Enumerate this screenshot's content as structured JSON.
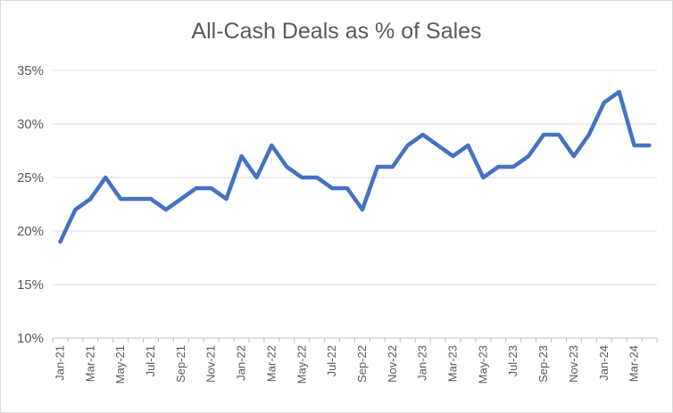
{
  "chart_data": {
    "type": "line",
    "title": "All-Cash Deals as % of Sales",
    "xlabel": "",
    "ylabel": "",
    "ylim": [
      10,
      35
    ],
    "yticks": [
      "10%",
      "15%",
      "20%",
      "25%",
      "30%",
      "35%"
    ],
    "grid": true,
    "legend": "none",
    "categories": [
      "Jan-21",
      "Feb-21",
      "Mar-21",
      "Apr-21",
      "May-21",
      "Jun-21",
      "Jul-21",
      "Aug-21",
      "Sep-21",
      "Oct-21",
      "Nov-21",
      "Dec-21",
      "Jan-22",
      "Feb-22",
      "Mar-22",
      "Apr-22",
      "May-22",
      "Jun-22",
      "Jul-22",
      "Aug-22",
      "Sep-22",
      "Oct-22",
      "Nov-22",
      "Dec-22",
      "Jan-23",
      "Feb-23",
      "Mar-23",
      "Apr-23",
      "May-23",
      "Jun-23",
      "Jul-23",
      "Aug-23",
      "Sep-23",
      "Oct-23",
      "Nov-23",
      "Dec-23",
      "Jan-24",
      "Feb-24",
      "Mar-24",
      "Apr-24"
    ],
    "x_tick_labels": [
      "Jan-21",
      "Mar-21",
      "May-21",
      "Jul-21",
      "Sep-21",
      "Nov-21",
      "Jan-22",
      "Mar-22",
      "May-22",
      "Jul-22",
      "Sep-22",
      "Nov-22",
      "Jan-23",
      "Mar-23",
      "May-23",
      "Jul-23",
      "Sep-23",
      "Nov-23",
      "Jan-24",
      "Mar-24"
    ],
    "series": [
      {
        "values": [
          19,
          22,
          23,
          25,
          23,
          23,
          23,
          22,
          23,
          24,
          24,
          23,
          27,
          25,
          28,
          26,
          25,
          25,
          24,
          24,
          22,
          26,
          26,
          28,
          29,
          28,
          27,
          28,
          25,
          26,
          26,
          27,
          29,
          29,
          27,
          29,
          32,
          33,
          28,
          28
        ],
        "color": "#4472c4"
      }
    ]
  }
}
